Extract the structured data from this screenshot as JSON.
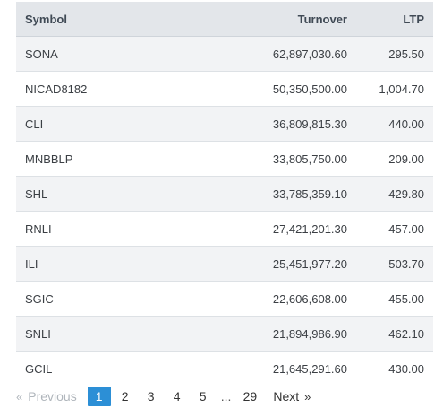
{
  "table": {
    "headers": {
      "symbol": "Symbol",
      "turnover": "Turnover",
      "ltp": "LTP"
    },
    "rows": [
      {
        "symbol": "SONA",
        "turnover": "62,897,030.60",
        "ltp": "295.50"
      },
      {
        "symbol": "NICAD8182",
        "turnover": "50,350,500.00",
        "ltp": "1,004.70"
      },
      {
        "symbol": "CLI",
        "turnover": "36,809,815.30",
        "ltp": "440.00"
      },
      {
        "symbol": "MNBBLP",
        "turnover": "33,805,750.00",
        "ltp": "209.00"
      },
      {
        "symbol": "SHL",
        "turnover": "33,785,359.10",
        "ltp": "429.80"
      },
      {
        "symbol": "RNLI",
        "turnover": "27,421,201.30",
        "ltp": "457.00"
      },
      {
        "symbol": "ILI",
        "turnover": "25,451,977.20",
        "ltp": "503.70"
      },
      {
        "symbol": "SGIC",
        "turnover": "22,606,608.00",
        "ltp": "455.00"
      },
      {
        "symbol": "SNLI",
        "turnover": "21,894,986.90",
        "ltp": "462.10"
      },
      {
        "symbol": "GCIL",
        "turnover": "21,645,291.60",
        "ltp": "430.00"
      }
    ]
  },
  "pagination": {
    "prev_arrow": "«",
    "prev_label": "Previous",
    "pages": [
      "1",
      "2",
      "3",
      "4",
      "5"
    ],
    "ellipsis": "...",
    "last_page": "29",
    "next_label": "Next",
    "next_arrow": "»",
    "current_page": "1"
  },
  "colors": {
    "header_bg": "#e3e6ea",
    "row_stripe": "#f2f3f5",
    "active_page": "#2c8fd6"
  }
}
